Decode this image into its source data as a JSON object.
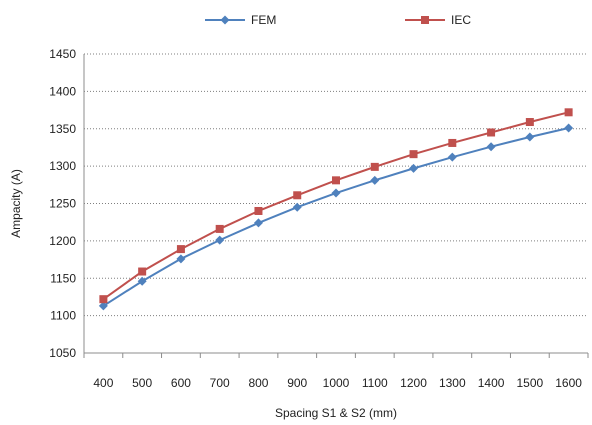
{
  "chart_data": {
    "type": "line",
    "title": "",
    "xlabel": "Spacing S1 & S2 (mm)",
    "ylabel": "Ampacity (A)",
    "ylim": [
      1050,
      1450
    ],
    "ytick_step": 50,
    "grid": "horizontal dotted",
    "legend_position": "top",
    "categories": [
      "400",
      "500",
      "600",
      "700",
      "800",
      "900",
      "1000",
      "1100",
      "1200",
      "1300",
      "1400",
      "1500",
      "1600"
    ],
    "series": [
      {
        "name": "FEM",
        "color": "#4F81BD",
        "marker": "diamond",
        "values": [
          1113,
          1146,
          1176,
          1201,
          1224,
          1245,
          1264,
          1281,
          1297,
          1312,
          1326,
          1339,
          1351
        ]
      },
      {
        "name": "IEC",
        "color": "#C0504D",
        "marker": "square",
        "values": [
          1122,
          1159,
          1189,
          1216,
          1240,
          1261,
          1281,
          1299,
          1316,
          1331,
          1345,
          1359,
          1372
        ]
      }
    ]
  }
}
